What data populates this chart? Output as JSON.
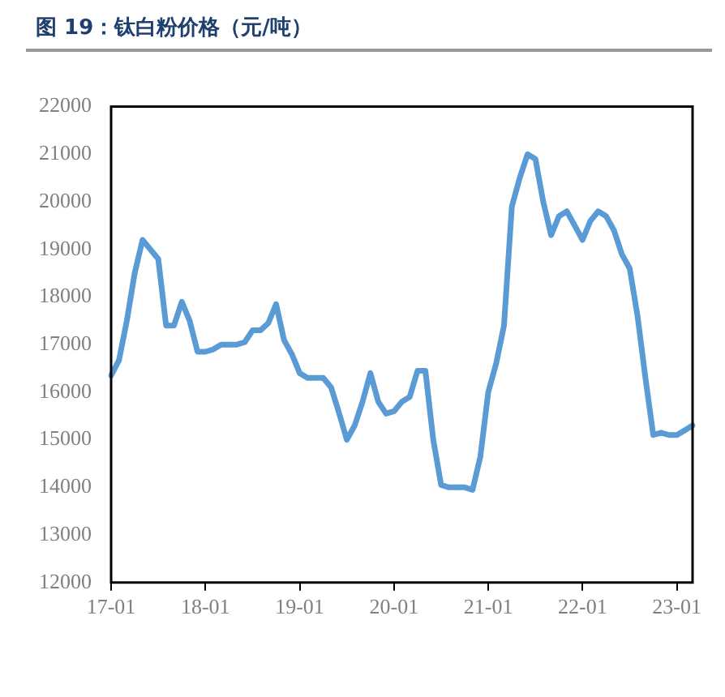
{
  "chart_data": {
    "type": "line",
    "title": "图 19：钛白粉价格（元/吨）",
    "categories": [
      "17-01",
      null,
      null,
      null,
      null,
      null,
      null,
      null,
      null,
      null,
      null,
      null,
      "18-01",
      null,
      null,
      null,
      null,
      null,
      null,
      null,
      null,
      null,
      null,
      null,
      "19-01",
      null,
      null,
      null,
      null,
      null,
      null,
      null,
      null,
      null,
      null,
      null,
      "20-01",
      null,
      null,
      null,
      null,
      null,
      null,
      null,
      null,
      null,
      null,
      null,
      "21-01",
      null,
      null,
      null,
      null,
      null,
      null,
      null,
      null,
      null,
      null,
      null,
      "22-01",
      null,
      null,
      null,
      null,
      null,
      null,
      null,
      null,
      null,
      null,
      null,
      "23-01",
      null,
      null
    ],
    "series": [
      {
        "color": "#5b9bd5",
        "values": [
          16350,
          16670,
          17500,
          18500,
          19200,
          19000,
          18800,
          17400,
          17400,
          17900,
          17500,
          16850,
          16850,
          16900,
          17000,
          17000,
          17000,
          17050,
          17300,
          17300,
          17450,
          17850,
          17100,
          16800,
          16400,
          16300,
          16300,
          16300,
          16100,
          15570,
          15000,
          15300,
          15800,
          16400,
          15800,
          15550,
          15600,
          15800,
          15900,
          16450,
          16450,
          15000,
          14050,
          14000,
          14000,
          14000,
          13950,
          14650,
          16000,
          16600,
          17400,
          19900,
          20500,
          21000,
          20900,
          20000,
          19300,
          19700,
          19800,
          19500,
          19200,
          19600,
          19800,
          19700,
          19400,
          18900,
          18600,
          17600,
          16300,
          15100,
          15150,
          15100,
          15100,
          15200,
          15300
        ]
      }
    ],
    "ylim": [
      12000,
      22000
    ],
    "yticks": [
      12000,
      13000,
      14000,
      15000,
      16000,
      17000,
      18000,
      19000,
      20000,
      21000,
      22000
    ],
    "grid": false,
    "legend": false,
    "marker": "none",
    "line_style": "solid"
  }
}
